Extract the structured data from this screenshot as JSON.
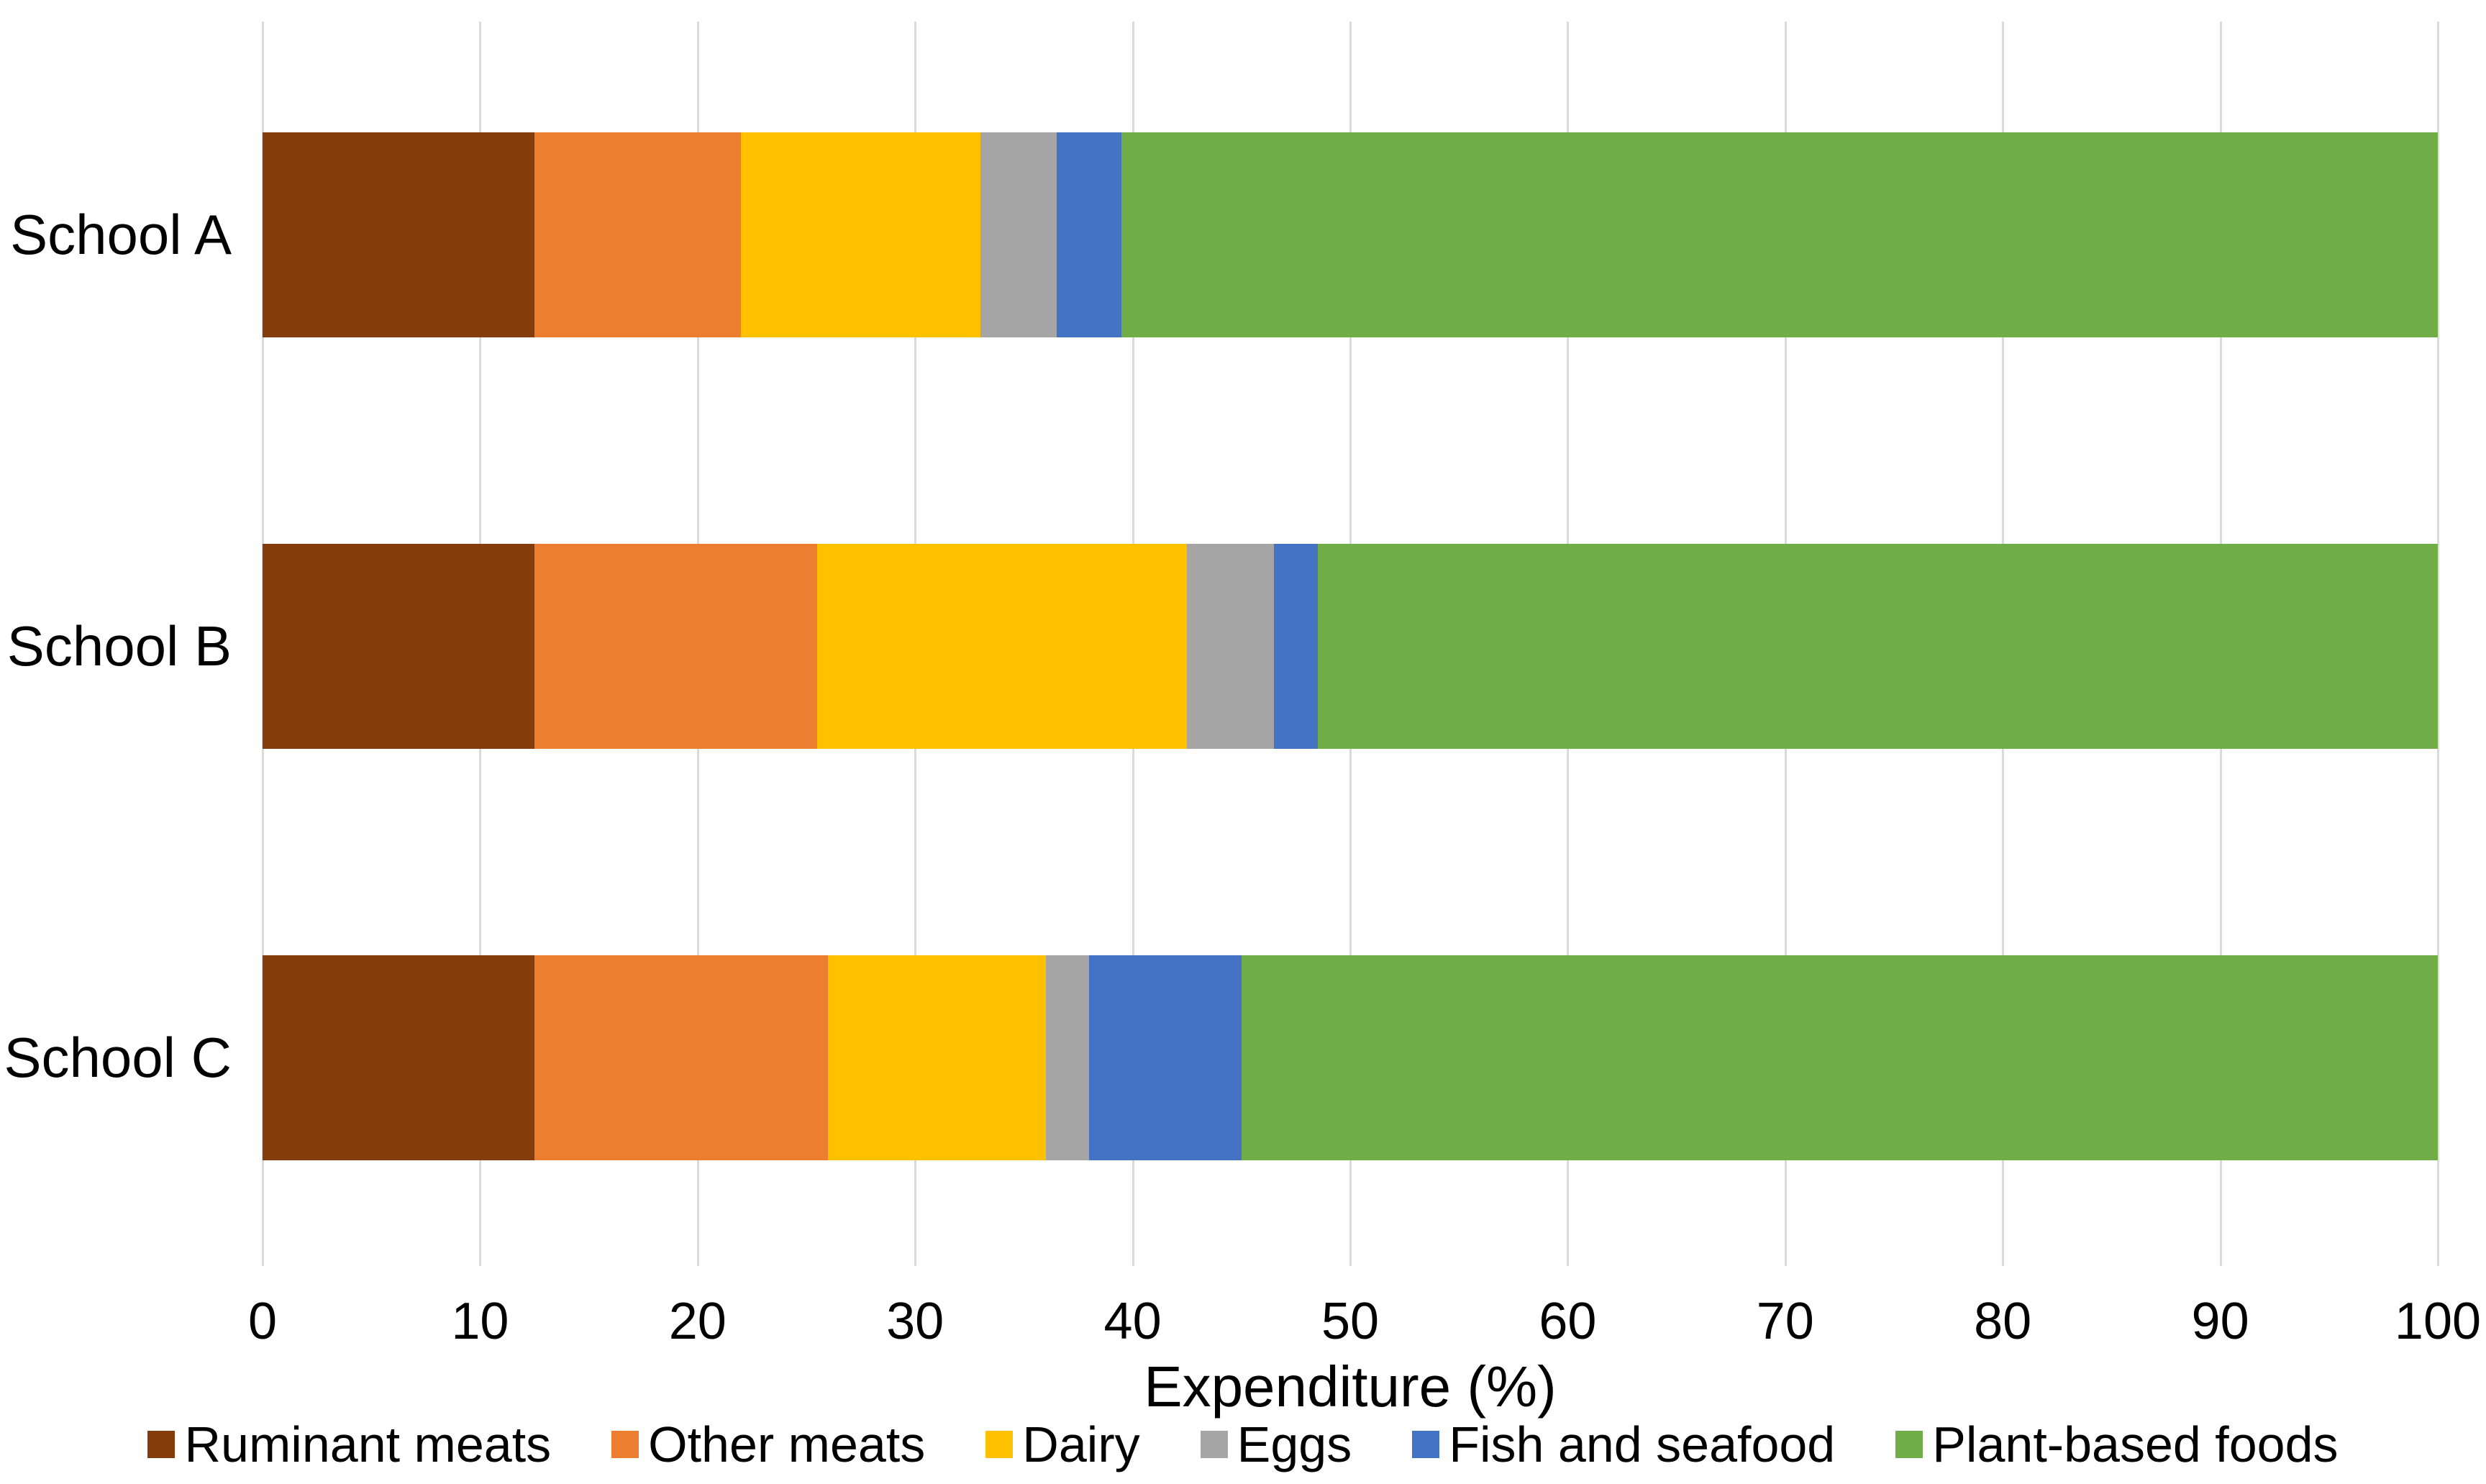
{
  "chart_data": {
    "type": "bar",
    "orientation": "horizontal",
    "stacked": true,
    "title": "",
    "categories": [
      "School A",
      "School B",
      "School C"
    ],
    "series": [
      {
        "name": "Ruminant meats",
        "color": "#843C0C",
        "values": [
          12.5,
          12.5,
          12.5
        ]
      },
      {
        "name": "Other meats",
        "color": "#ED7D31",
        "values": [
          9.5,
          13.0,
          13.5
        ]
      },
      {
        "name": "Dairy",
        "color": "#FFC000",
        "values": [
          11.0,
          17.0,
          10.0
        ]
      },
      {
        "name": "Eggs",
        "color": "#A5A5A5",
        "values": [
          3.5,
          4.0,
          2.0
        ]
      },
      {
        "name": "Fish and seafood",
        "color": "#4472C4",
        "values": [
          3.0,
          2.0,
          7.0
        ]
      },
      {
        "name": "Plant-based foods",
        "color": "#70AD47",
        "values": [
          60.5,
          51.5,
          55.0
        ]
      }
    ],
    "xlabel": "Expenditure (%)",
    "ylabel": "",
    "xlim": [
      0,
      100
    ],
    "xticks": [
      0,
      10,
      20,
      30,
      40,
      50,
      60,
      70,
      80,
      90,
      100
    ],
    "grid": "vertical",
    "legend_position": "bottom"
  },
  "style": {
    "background_color": "#FFFFFF",
    "gridline_color": "#DBDBDB",
    "text_color": "#000000"
  }
}
